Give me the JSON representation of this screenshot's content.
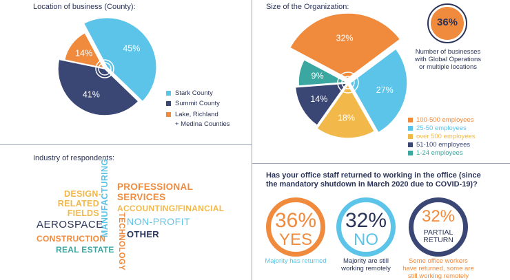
{
  "colors": {
    "navy": "#3a4674",
    "blue": "#5bc4e8",
    "orange": "#f08a3c",
    "yellow": "#f2b94a",
    "teal": "#3aa7a0",
    "divider": "#9aa3b8"
  },
  "chart_data": [
    {
      "type": "pie",
      "title": "Location of business (County):",
      "series": [
        {
          "name": "Stark County",
          "value": 45,
          "label": "45%",
          "color": "#5bc4e8"
        },
        {
          "name": "Summit County",
          "value": 41,
          "label": "41%",
          "color": "#3a4674"
        },
        {
          "name": "Lake, Richland + Medina Counties",
          "value": 14,
          "label": "14%",
          "color": "#f08a3c"
        }
      ],
      "legend": [
        "Stark County",
        "Summit County",
        "Lake, Richland",
        "+ Medina Counties"
      ],
      "legend_position": "right"
    },
    {
      "type": "pie",
      "title": "Size of the Organization:",
      "series": [
        {
          "name": "100-500 employees",
          "value": 32,
          "label": "32%",
          "color": "#f08a3c"
        },
        {
          "name": "25-50 employees",
          "value": 27,
          "label": "27%",
          "color": "#5bc4e8"
        },
        {
          "name": "over 500 employees",
          "value": 18,
          "label": "18%",
          "color": "#f2b94a"
        },
        {
          "name": "51-100 employees",
          "value": 14,
          "label": "14%",
          "color": "#3a4674"
        },
        {
          "name": "1-24 employees",
          "value": 9,
          "label": "9%",
          "color": "#3aa7a0"
        }
      ],
      "legend_position": "bottom-right"
    },
    {
      "type": "table",
      "title": "Has your office staff returned to working in the office (since the mandatory shutdown in March 2020 due to COVID-19)?",
      "series": [
        {
          "name": "YES",
          "value": 36,
          "label": "36%",
          "caption": [
            "Majority has returned"
          ]
        },
        {
          "name": "NO",
          "value": 32,
          "label": "32%",
          "caption": [
            "Majority are still",
            "working remotely"
          ]
        },
        {
          "name": "PARTIAL RETURN",
          "value": 32,
          "label": "32%",
          "caption": [
            "Some office workers",
            "have returned, some are",
            "still working remotely"
          ]
        }
      ]
    }
  ],
  "global_ops": {
    "value": "36%",
    "caption": [
      "Number of businesses",
      "with Global Operations",
      "or multiple locations"
    ]
  },
  "industry": {
    "title": "Industry of respondents:",
    "design": [
      "DESIGN-",
      "RELATED",
      "FIELDS"
    ],
    "manufacturing": "MANUFACTURING",
    "technology": "TECHNOLOGY",
    "professional": [
      "PROFESSIONAL",
      "SERVICES"
    ],
    "accounting": "ACCOUNTING/FINANCIAL",
    "aerospace": "AEROSPACE",
    "nonprofit": "NON-PROFIT",
    "construction": "CONSTRUCTION",
    "other": "OTHER",
    "realestate": "REAL ESTATE"
  },
  "return": {
    "yes_word": "YES",
    "no_word": "NO",
    "partial_word": [
      "PARTIAL",
      "RETURN"
    ]
  }
}
